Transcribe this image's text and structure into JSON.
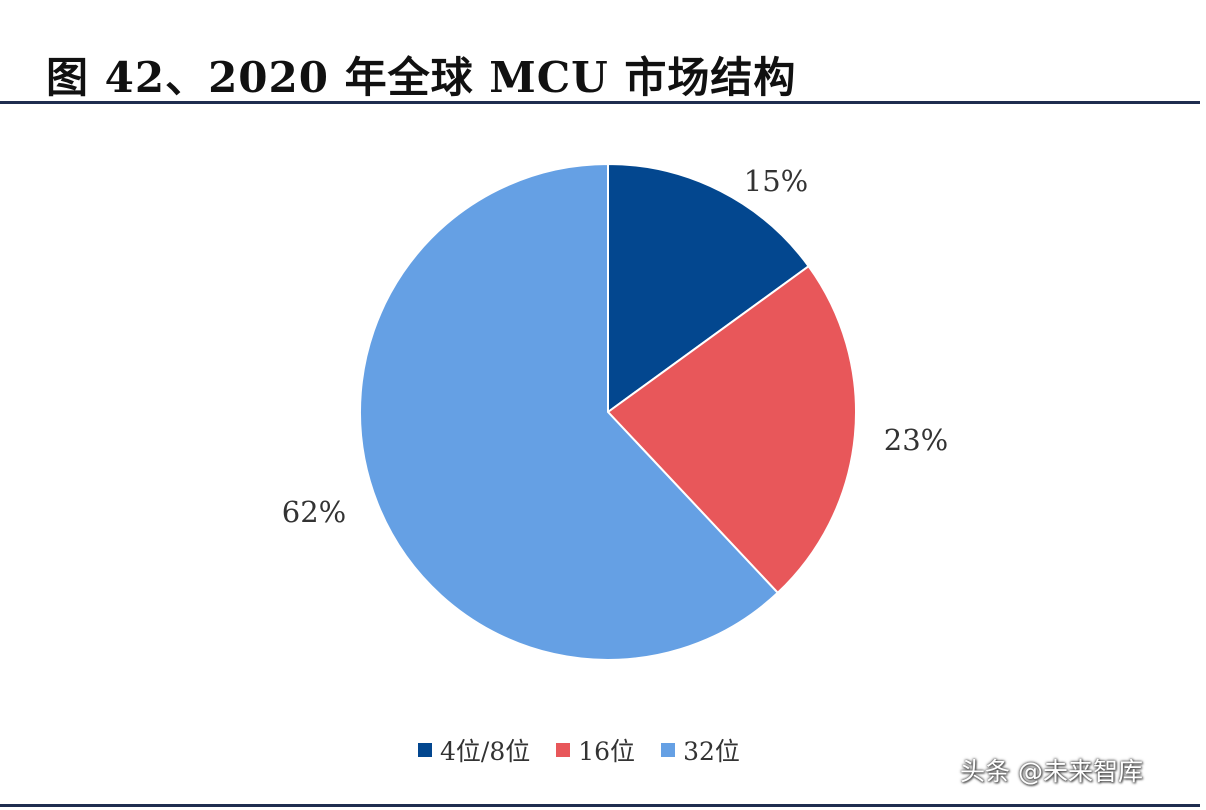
{
  "figure_title": "图 42、2020 年全球 MCU 市场结构",
  "watermark": "头条 @未来智库",
  "chart_data": {
    "type": "pie",
    "title": "图 42、2020 年全球 MCU 市场结构",
    "categories": [
      "4位/8位",
      "16位",
      "32位"
    ],
    "values": [
      15,
      23,
      62
    ],
    "value_labels": [
      "15%",
      "23%",
      "62%"
    ],
    "unit": "%",
    "colors": [
      "#03478f",
      "#e8575a",
      "#65a0e4"
    ],
    "start_angle": "12 o'clock",
    "direction": "clockwise",
    "legend_position": "bottom-center"
  },
  "legend": {
    "items": [
      {
        "label": "4位/8位",
        "color": "#03478f"
      },
      {
        "label": "16位",
        "color": "#e8575a"
      },
      {
        "label": "32位",
        "color": "#65a0e4"
      }
    ]
  }
}
